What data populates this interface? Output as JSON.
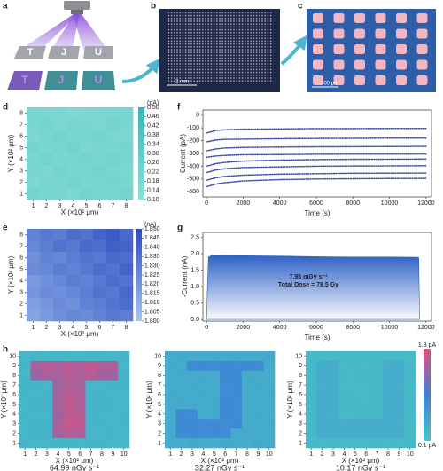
{
  "figure": {
    "panels": [
      "a",
      "b",
      "c",
      "d",
      "e",
      "f",
      "g",
      "h"
    ],
    "scale_bars": [
      "2 mm",
      "500 μm"
    ],
    "letters": [
      "T",
      "J",
      "U"
    ]
  },
  "chart_data": [
    {
      "type": "heatmap",
      "xlabel": "X (×10² μm)",
      "ylabel": "Y (×10² μm)",
      "x": [
        1,
        2,
        3,
        4,
        5,
        6,
        7,
        8
      ],
      "y": [
        8,
        7,
        6,
        5,
        4,
        3,
        2,
        1
      ],
      "xlim": [
        0.5,
        8.5
      ],
      "ylim": [
        0.5,
        8.5
      ],
      "xticks": [
        1,
        2,
        3,
        4,
        5,
        6,
        7,
        8
      ],
      "yticks": [
        1,
        2,
        3,
        4,
        5,
        6,
        7,
        8
      ],
      "z": [
        [
          0.2,
          0.18,
          0.19,
          0.17,
          0.18,
          0.19,
          0.18,
          0.2
        ],
        [
          0.19,
          0.21,
          0.18,
          0.2,
          0.19,
          0.18,
          0.21,
          0.19
        ],
        [
          0.18,
          0.2,
          0.22,
          0.19,
          0.2,
          0.21,
          0.19,
          0.18
        ],
        [
          0.21,
          0.19,
          0.2,
          0.22,
          0.18,
          0.2,
          0.2,
          0.21
        ],
        [
          0.19,
          0.22,
          0.19,
          0.2,
          0.21,
          0.19,
          0.22,
          0.2
        ],
        [
          0.2,
          0.18,
          0.21,
          0.19,
          0.2,
          0.22,
          0.19,
          0.18
        ],
        [
          0.18,
          0.2,
          0.19,
          0.21,
          0.19,
          0.2,
          0.21,
          0.19
        ],
        [
          0.21,
          0.19,
          0.2,
          0.18,
          0.22,
          0.19,
          0.2,
          0.21
        ]
      ],
      "zlim": [
        0.1,
        0.5
      ],
      "colorscale": [
        "#8ce0da",
        "#3cb4b4"
      ],
      "colorbar_unit": "(pA)",
      "cticks": [
        {
          "value": 0.1,
          "label": "0.10"
        },
        0.14,
        0.18,
        0.22,
        0.26,
        {
          "value": 0.3,
          "label": "0.30"
        },
        0.34,
        0.38,
        0.42,
        0.46,
        {
          "value": 0.5,
          "label": "0.50"
        }
      ]
    },
    {
      "type": "line",
      "xlabel": "Time (s)",
      "ylabel": "Current (pA)",
      "x": [
        0,
        500,
        1000,
        2000,
        4000,
        6000,
        8000,
        10000,
        12000
      ],
      "xlim": [
        -200,
        12300
      ],
      "ylim": [
        -640,
        40
      ],
      "xticks": [
        0,
        2000,
        4000,
        6000,
        8000,
        10000,
        12000
      ],
      "yticks": [
        0,
        -100,
        -200,
        -300,
        -400,
        -500,
        -600
      ],
      "series": [
        {
          "color": "#3d4ea6",
          "values": [
            -140,
            -120,
            -115,
            -110,
            -108,
            -105,
            -105,
            -104,
            -104
          ]
        },
        {
          "color": "#3d4ea6",
          "values": [
            -210,
            -195,
            -190,
            -188,
            -185,
            -183,
            -182,
            -180,
            -180
          ]
        },
        {
          "color": "#3d4ea6",
          "values": [
            -280,
            -265,
            -258,
            -253,
            -250,
            -248,
            -247,
            -246,
            -245
          ]
        },
        {
          "color": "#3d4ea6",
          "values": [
            -330,
            -320,
            -315,
            -310,
            -308,
            -306,
            -305,
            -305,
            -304
          ]
        },
        {
          "color": "#3d4ea6",
          "values": [
            -400,
            -380,
            -370,
            -360,
            -352,
            -348,
            -346,
            -345,
            -344
          ]
        },
        {
          "color": "#3d4ea6",
          "values": [
            -450,
            -430,
            -420,
            -410,
            -405,
            -400,
            -398,
            -397,
            -396
          ]
        },
        {
          "color": "#3d4ea6",
          "values": [
            -510,
            -490,
            -480,
            -470,
            -462,
            -458,
            -455,
            -454,
            -453
          ]
        },
        {
          "color": "#3d4ea6",
          "values": [
            -560,
            -540,
            -530,
            -515,
            -505,
            -500,
            -498,
            -496,
            -495
          ]
        }
      ]
    },
    {
      "type": "heatmap",
      "xlabel": "X (×10² μm)",
      "ylabel": "Y (×10² μm)",
      "x": [
        1,
        2,
        3,
        4,
        5,
        6,
        7,
        8
      ],
      "y": [
        8,
        7,
        6,
        5,
        4,
        3,
        2,
        1
      ],
      "xlim": [
        0.5,
        8.5
      ],
      "ylim": [
        0.5,
        8.5
      ],
      "xticks": [
        1,
        2,
        3,
        4,
        5,
        6,
        7,
        8
      ],
      "yticks": [
        1,
        2,
        3,
        4,
        5,
        6,
        7,
        8
      ],
      "z": [
        [
          1.828,
          1.832,
          1.83,
          1.836,
          1.834,
          1.84,
          1.844,
          1.838
        ],
        [
          1.826,
          1.83,
          1.834,
          1.832,
          1.838,
          1.836,
          1.842,
          1.84
        ],
        [
          1.822,
          1.828,
          1.826,
          1.83,
          1.834,
          1.832,
          1.838,
          1.836
        ],
        [
          1.824,
          1.826,
          1.83,
          1.828,
          1.832,
          1.836,
          1.834,
          1.84
        ],
        [
          1.818,
          1.822,
          1.826,
          1.83,
          1.828,
          1.832,
          1.836,
          1.834
        ],
        [
          1.82,
          1.824,
          1.822,
          1.826,
          1.83,
          1.834,
          1.832,
          1.838
        ],
        [
          1.816,
          1.82,
          1.824,
          1.822,
          1.828,
          1.83,
          1.834,
          1.836
        ],
        [
          1.814,
          1.818,
          1.822,
          1.826,
          1.824,
          1.828,
          1.832,
          1.83
        ]
      ],
      "zlim": [
        1.8,
        1.85
      ],
      "colorscale": [
        "#a6c6ef",
        "#2c4cc0"
      ],
      "colorbar_unit": "(nA)",
      "cticks": [
        {
          "value": 1.8,
          "label": "1.800"
        },
        1.805,
        {
          "value": 1.81,
          "label": "1.810"
        },
        1.815,
        {
          "value": 1.82,
          "label": "1.820"
        },
        1.825,
        {
          "value": 1.83,
          "label": "1.830"
        },
        1.835,
        {
          "value": 1.84,
          "label": "1.840"
        },
        1.845,
        {
          "value": 1.85,
          "label": "1.850"
        }
      ]
    },
    {
      "type": "area",
      "xlabel": "Time (s)",
      "ylabel": "-Current (nA)",
      "color": "#2e62c6",
      "x": [
        0,
        100,
        300,
        2000,
        4000,
        6000,
        8000,
        10000,
        11500,
        11600,
        11650
      ],
      "values": [
        0,
        1.9,
        1.95,
        1.94,
        1.93,
        1.91,
        1.9,
        1.9,
        1.89,
        1.88,
        0
      ],
      "xlim": [
        -200,
        12300
      ],
      "ylim": [
        -0.05,
        2.65
      ],
      "xticks": [
        0,
        2000,
        4000,
        6000,
        8000,
        10000,
        12000
      ],
      "yticks": [
        {
          "value": 0,
          "label": "0.0"
        },
        0.5,
        {
          "value": 1,
          "label": "1.0"
        },
        1.5,
        {
          "value": 2,
          "label": "2.0"
        },
        2.5
      ],
      "annotations": [
        "7.95 mGy s⁻¹",
        "Total Dose = 78.5 Gy"
      ]
    },
    {
      "type": "heatmap",
      "title": "64.99 nGy s⁻¹",
      "xlabel": "X (×10² μm)",
      "ylabel": "Y (×10² μm)",
      "x": [
        1,
        2,
        3,
        4,
        5,
        6,
        7,
        8,
        9,
        10
      ],
      "y": [
        10,
        9,
        8,
        7,
        6,
        5,
        4,
        3,
        2,
        1
      ],
      "xlim": [
        0.5,
        10.5
      ],
      "ylim": [
        0.5,
        10.5
      ],
      "xticks": [
        1,
        2,
        3,
        4,
        5,
        6,
        7,
        8,
        9,
        10
      ],
      "yticks": [
        1,
        2,
        3,
        4,
        5,
        6,
        7,
        8,
        9,
        10
      ],
      "z": [
        [
          0.28,
          0.3,
          0.29,
          0.31,
          0.3,
          0.29,
          0.3,
          0.31,
          0.29,
          0.3
        ],
        [
          0.3,
          1.5,
          1.58,
          1.52,
          1.6,
          1.55,
          1.62,
          1.54,
          1.5,
          0.29
        ],
        [
          0.29,
          1.42,
          1.5,
          1.48,
          1.56,
          1.52,
          1.58,
          1.46,
          1.44,
          0.3
        ],
        [
          0.31,
          0.3,
          0.29,
          1.45,
          1.55,
          1.5,
          0.3,
          0.29,
          0.31,
          0.3
        ],
        [
          0.3,
          0.29,
          0.31,
          1.48,
          1.58,
          1.52,
          0.31,
          0.3,
          0.29,
          0.28
        ],
        [
          0.29,
          0.31,
          0.3,
          1.5,
          1.62,
          1.55,
          0.29,
          0.31,
          0.3,
          0.29
        ],
        [
          0.3,
          0.28,
          0.29,
          1.46,
          1.6,
          1.58,
          0.3,
          0.29,
          0.28,
          0.3
        ],
        [
          0.28,
          0.3,
          0.31,
          1.52,
          1.65,
          1.6,
          0.31,
          0.3,
          0.29,
          0.31
        ],
        [
          0.29,
          0.31,
          0.3,
          1.48,
          1.58,
          1.55,
          0.29,
          0.28,
          0.3,
          0.29
        ],
        [
          0.3,
          0.29,
          0.28,
          0.3,
          0.31,
          0.29,
          0.3,
          0.31,
          0.29,
          0.28
        ]
      ],
      "zlim": [
        0.1,
        1.8
      ],
      "colorscale": [
        "#49c6c4",
        "#3d7fd8",
        "#e2507c"
      ]
    },
    {
      "type": "heatmap",
      "title": "32.27 nGy s⁻¹",
      "xlabel": "X (×10² μm)",
      "ylabel": "Y (×10² μm)",
      "x": [
        1,
        2,
        3,
        4,
        5,
        6,
        7,
        8,
        9,
        10
      ],
      "y": [
        10,
        9,
        8,
        7,
        6,
        5,
        4,
        3,
        2,
        1
      ],
      "xlim": [
        0.5,
        10.5
      ],
      "ylim": [
        0.5,
        10.5
      ],
      "xticks": [
        1,
        2,
        3,
        4,
        5,
        6,
        7,
        8,
        9,
        10
      ],
      "yticks": [
        1,
        2,
        3,
        4,
        5,
        6,
        7,
        8,
        9,
        10
      ],
      "z": [
        [
          0.42,
          0.43,
          0.41,
          0.42,
          0.44,
          0.42,
          0.43,
          0.41,
          0.42,
          0.43
        ],
        [
          0.43,
          0.42,
          0.8,
          0.82,
          0.81,
          0.83,
          0.8,
          0.82,
          0.79,
          0.42
        ],
        [
          0.41,
          0.43,
          0.42,
          0.44,
          0.43,
          0.82,
          0.84,
          0.43,
          0.42,
          0.41
        ],
        [
          0.42,
          0.41,
          0.43,
          0.42,
          0.41,
          0.8,
          0.83,
          0.42,
          0.43,
          0.42
        ],
        [
          0.43,
          0.42,
          0.41,
          0.43,
          0.42,
          0.81,
          0.82,
          0.41,
          0.42,
          0.43
        ],
        [
          0.42,
          0.43,
          0.42,
          0.41,
          0.43,
          0.83,
          0.8,
          0.43,
          0.41,
          0.42
        ],
        [
          0.41,
          0.82,
          0.8,
          0.42,
          0.43,
          0.82,
          0.81,
          0.42,
          0.43,
          0.41
        ],
        [
          0.42,
          0.84,
          0.83,
          0.81,
          0.82,
          0.8,
          0.83,
          0.41,
          0.42,
          0.43
        ],
        [
          0.43,
          0.81,
          0.82,
          0.8,
          0.83,
          0.81,
          0.42,
          0.43,
          0.41,
          0.42
        ],
        [
          0.42,
          0.41,
          0.43,
          0.42,
          0.41,
          0.43,
          0.42,
          0.41,
          0.43,
          0.42
        ]
      ],
      "zlim": [
        0.1,
        1.8
      ],
      "colorscale": [
        "#49c6c4",
        "#3d7fd8",
        "#e2507c"
      ]
    },
    {
      "type": "heatmap",
      "title": "10.17 nGy s⁻¹",
      "xlabel": "X (×10² μm)",
      "ylabel": "Y (×10² μm)",
      "x": [
        1,
        2,
        3,
        4,
        5,
        6,
        7,
        8,
        9,
        10
      ],
      "y": [
        10,
        9,
        8,
        7,
        6,
        5,
        4,
        3,
        2,
        1
      ],
      "xlim": [
        0.5,
        10.5
      ],
      "ylim": [
        0.5,
        10.5
      ],
      "xticks": [
        1,
        2,
        3,
        4,
        5,
        6,
        7,
        8,
        9,
        10
      ],
      "yticks": [
        1,
        2,
        3,
        4,
        5,
        6,
        7,
        8,
        9,
        10
      ],
      "z": [
        [
          0.26,
          0.27,
          0.25,
          0.26,
          0.27,
          0.26,
          0.25,
          0.26,
          0.27,
          0.26
        ],
        [
          0.25,
          0.4,
          0.41,
          0.26,
          0.27,
          0.25,
          0.26,
          0.39,
          0.4,
          0.26
        ],
        [
          0.26,
          0.41,
          0.39,
          0.25,
          0.26,
          0.27,
          0.25,
          0.4,
          0.41,
          0.27
        ],
        [
          0.27,
          0.39,
          0.4,
          0.26,
          0.25,
          0.26,
          0.27,
          0.41,
          0.39,
          0.25
        ],
        [
          0.26,
          0.4,
          0.41,
          0.27,
          0.26,
          0.25,
          0.26,
          0.4,
          0.4,
          0.26
        ],
        [
          0.25,
          0.41,
          0.4,
          0.26,
          0.27,
          0.26,
          0.25,
          0.39,
          0.41,
          0.27
        ],
        [
          0.26,
          0.4,
          0.39,
          0.25,
          0.26,
          0.27,
          0.26,
          0.41,
          0.4,
          0.26
        ],
        [
          0.26,
          0.41,
          0.4,
          0.39,
          0.41,
          0.4,
          0.41,
          0.4,
          0.39,
          0.25
        ],
        [
          0.27,
          0.4,
          0.41,
          0.4,
          0.39,
          0.41,
          0.4,
          0.41,
          0.4,
          0.26
        ],
        [
          0.26,
          0.25,
          0.27,
          0.26,
          0.25,
          0.26,
          0.27,
          0.25,
          0.26,
          0.27
        ]
      ],
      "zlim": [
        0.1,
        1.8
      ],
      "colorscale": [
        "#49c6c4",
        "#3d7fd8",
        "#e2507c"
      ],
      "cticks": [
        {
          "value": 1.8,
          "label": "1.8 pA"
        },
        {
          "value": 0.1,
          "label": "0.1 pA"
        }
      ]
    }
  ]
}
